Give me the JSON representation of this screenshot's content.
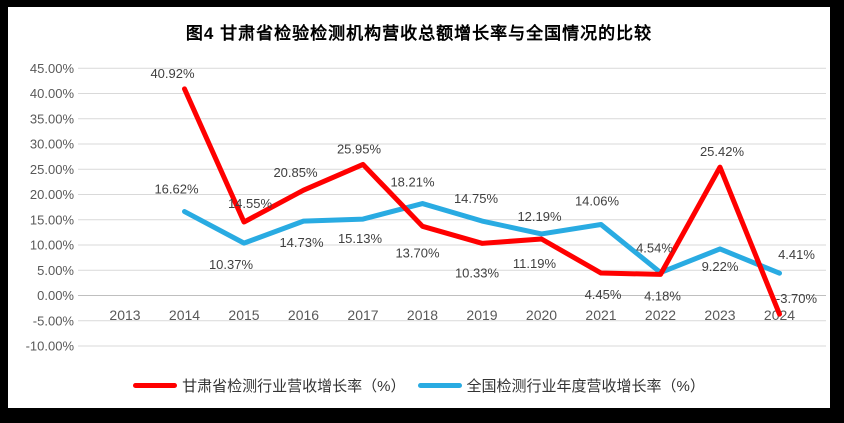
{
  "chart_data": {
    "type": "line",
    "title": "图4 甘肃省检验检测机构营收总额增长率与全国情况的比较",
    "categories": [
      "2013",
      "2014",
      "2015",
      "2016",
      "2017",
      "2018",
      "2019",
      "2020",
      "2021",
      "2022",
      "2023",
      "2024"
    ],
    "y_axis": {
      "min": -10,
      "max": 45,
      "step": 5,
      "ticks": [
        "45.00%",
        "40.00%",
        "35.00%",
        "30.00%",
        "25.00%",
        "20.00%",
        "15.00%",
        "10.00%",
        "5.00%",
        "0.00%",
        "-5.00%",
        "-10.00%"
      ]
    },
    "grid": true,
    "legend_position": "bottom",
    "colors": {
      "grid": "#D9D9D9",
      "zero_axis": "#BFBFBF",
      "axis_text": "#595959",
      "data_label": "#404040"
    },
    "series": [
      {
        "name": "甘肃省检测行业营收增长率（%）",
        "color": "#FF0000",
        "points": [
          {
            "category": "2014",
            "value": 40.92,
            "label": "40.92%",
            "label_pos": "above",
            "dx": -12,
            "dy": 0
          },
          {
            "category": "2015",
            "value": 14.55,
            "label": "14.55%",
            "label_pos": "above",
            "dx": 6,
            "dy": -3
          },
          {
            "category": "2016",
            "value": 20.85,
            "label": "20.85%",
            "label_pos": "above",
            "dx": -8,
            "dy": -2
          },
          {
            "category": "2017",
            "value": 25.95,
            "label": "25.95%",
            "label_pos": "above",
            "dx": -4,
            "dy": 0
          },
          {
            "category": "2018",
            "value": 13.7,
            "label": "13.70%",
            "label_pos": "below",
            "dx": -5,
            "dy": 5
          },
          {
            "category": "2019",
            "value": 10.33,
            "label": "10.33%",
            "label_pos": "below",
            "dx": -5,
            "dy": 8
          },
          {
            "category": "2020",
            "value": 11.19,
            "label": "11.19%",
            "label_pos": "below",
            "dx": -7,
            "dy": 3
          },
          {
            "category": "2021",
            "value": 4.45,
            "label": "4.45%",
            "label_pos": "below",
            "dx": 2,
            "dy": 0
          },
          {
            "category": "2022",
            "value": 4.18,
            "label": "4.18%",
            "label_pos": "below",
            "dx": 2,
            "dy": 0
          },
          {
            "category": "2023",
            "value": 25.42,
            "label": "25.42%",
            "label_pos": "above",
            "dx": 2,
            "dy": 0
          },
          {
            "category": "2024",
            "value": -3.7,
            "label": "-3.70%",
            "label_pos": "above",
            "dx": 17,
            "dy": 0
          }
        ]
      },
      {
        "name": "全国检测行业年度营收增长率（%）",
        "color": "#29ABE2",
        "points": [
          {
            "category": "2014",
            "value": 16.62,
            "label": "16.62%",
            "label_pos": "above",
            "dx": -8,
            "dy": -7
          },
          {
            "category": "2015",
            "value": 10.37,
            "label": "10.37%",
            "label_pos": "below",
            "dx": -13,
            "dy": 0
          },
          {
            "category": "2016",
            "value": 14.73,
            "label": "14.73%",
            "label_pos": "below",
            "dx": -2,
            "dy": 0
          },
          {
            "category": "2017",
            "value": 15.13,
            "label": "15.13%",
            "label_pos": "below",
            "dx": -3,
            "dy": -2
          },
          {
            "category": "2018",
            "value": 18.21,
            "label": "18.21%",
            "label_pos": "above",
            "dx": -10,
            "dy": -6
          },
          {
            "category": "2019",
            "value": 14.75,
            "label": "14.75%",
            "label_pos": "above",
            "dx": -6,
            "dy": -7
          },
          {
            "category": "2020",
            "value": 12.19,
            "label": "12.19%",
            "label_pos": "above",
            "dx": -2,
            "dy": -2
          },
          {
            "category": "2021",
            "value": 14.06,
            "label": "14.06%",
            "label_pos": "above",
            "dx": -4,
            "dy": -8
          },
          {
            "category": "2022",
            "value": 4.54,
            "label": "4.54%",
            "label_pos": "above",
            "dx": -6,
            "dy": -9
          },
          {
            "category": "2023",
            "value": 9.22,
            "label": "9.22%",
            "label_pos": "below",
            "dx": 0,
            "dy": -4
          },
          {
            "category": "2024",
            "value": 4.41,
            "label": "4.41%",
            "label_pos": "above",
            "dx": 17,
            "dy": -3
          }
        ]
      }
    ]
  }
}
